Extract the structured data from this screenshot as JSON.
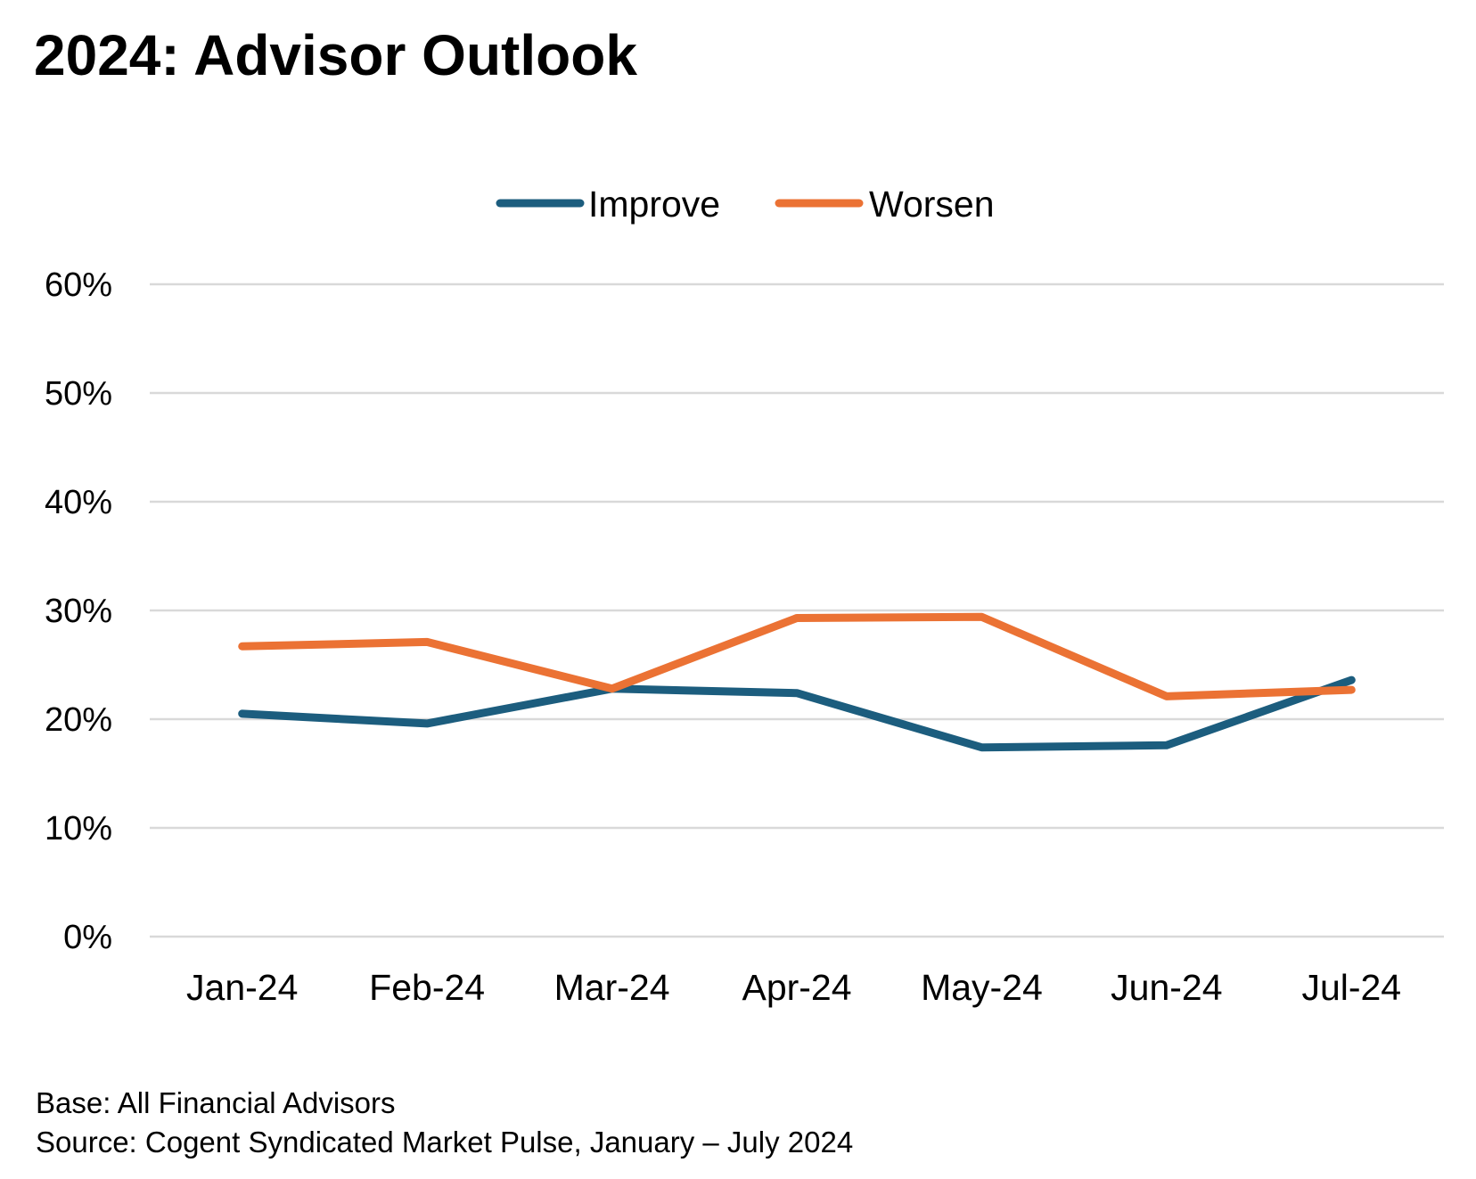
{
  "title": "2024: Advisor Outlook",
  "footnotes": {
    "base": "Base: All Financial Advisors",
    "source": "Source: Cogent Syndicated Market Pulse, January – July 2024"
  },
  "chart_data": {
    "type": "line",
    "title": "",
    "xlabel": "",
    "ylabel": "",
    "categories": [
      "Jan-24",
      "Feb-24",
      "Mar-24",
      "Apr-24",
      "May-24",
      "Jun-24",
      "Jul-24"
    ],
    "series": [
      {
        "name": "Improve",
        "color": "#1C5D7E",
        "values": [
          20.5,
          19.6,
          22.8,
          22.4,
          17.4,
          17.6,
          23.6
        ]
      },
      {
        "name": "Worsen",
        "color": "#EB7234",
        "values": [
          26.7,
          27.1,
          22.8,
          29.3,
          29.4,
          22.1,
          22.7
        ]
      }
    ],
    "ylim": [
      0,
      60
    ],
    "yticks": [
      0,
      10,
      20,
      30,
      40,
      50,
      60
    ],
    "ytick_format": "percent",
    "grid": true,
    "gridline_color": "#D9D9D9",
    "legend_position": "top-center"
  }
}
